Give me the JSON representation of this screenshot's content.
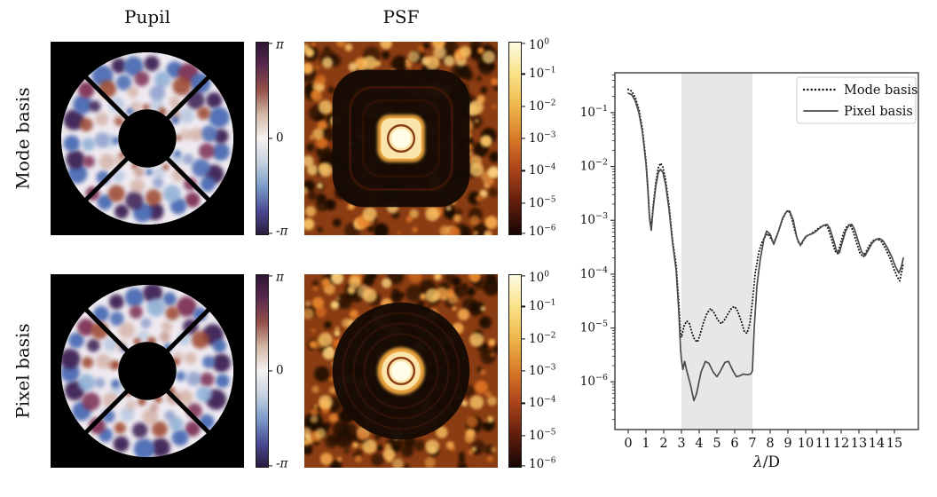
{
  "panels": {
    "column_titles": {
      "pupil": "Pupil",
      "psf": "PSF"
    },
    "rows": [
      {
        "label": "Mode basis",
        "psf_dark_hole_shape": "square"
      },
      {
        "label": "Pixel basis",
        "psf_dark_hole_shape": "circle"
      }
    ],
    "phase_colorbar": {
      "ticks": [
        "π",
        "0",
        "-π"
      ],
      "gradient_top_to_bottom": [
        "#2e1636",
        "#5c2a4e",
        "#96524a",
        "#d3b8a8",
        "#f5f2f0",
        "#c6d2e0",
        "#7b9cc9",
        "#4b4b96",
        "#2c1b3e"
      ]
    },
    "psf_colorbar": {
      "ticks": [
        {
          "base": "10",
          "exp": "0"
        },
        {
          "base": "10",
          "exp": "−1"
        },
        {
          "base": "10",
          "exp": "−2"
        },
        {
          "base": "10",
          "exp": "−3"
        },
        {
          "base": "10",
          "exp": "−4"
        },
        {
          "base": "10",
          "exp": "−5"
        },
        {
          "base": "10",
          "exp": "−6"
        }
      ],
      "gradient_top_to_bottom": [
        "#fdfae3",
        "#f9e286",
        "#eeb64b",
        "#d87a28",
        "#a8431a",
        "#611e0c",
        "#170503"
      ]
    }
  },
  "colors": {
    "background": "#ffffff",
    "axes": "#3a3a3a",
    "pupil_background": "#000000",
    "pupil_disk": "#efeaf0"
  },
  "chart_data": {
    "type": "line",
    "xlabel": "λ/D",
    "xlim": [
      -0.75,
      16.35
    ],
    "ylim": [
      1.3e-07,
      0.55
    ],
    "yscale": "log",
    "grid": false,
    "x_ticks": [
      0,
      1,
      2,
      3,
      4,
      5,
      6,
      7,
      8,
      9,
      10,
      11,
      12,
      13,
      14,
      15
    ],
    "y_tick_exponents": [
      -1,
      -2,
      -3,
      -4,
      -5,
      -6
    ],
    "legend_position": "upper right",
    "shaded_region": {
      "x_start": 3,
      "x_end": 7,
      "color": "#e7e7e7"
    },
    "series": [
      {
        "name": "Mode basis",
        "style": "dotted",
        "color": "#111111",
        "points": [
          [
            0,
            0.27
          ],
          [
            0.2,
            0.25
          ],
          [
            0.4,
            0.19
          ],
          [
            0.6,
            0.115
          ],
          [
            0.8,
            0.05
          ],
          [
            1.0,
            0.013
          ],
          [
            1.1,
            0.0045
          ],
          [
            1.2,
            0.0012
          ],
          [
            1.3,
            0.00075
          ],
          [
            1.4,
            0.0018
          ],
          [
            1.55,
            0.005
          ],
          [
            1.7,
            0.0095
          ],
          [
            1.82,
            0.0115
          ],
          [
            1.95,
            0.0098
          ],
          [
            2.1,
            0.0058
          ],
          [
            2.3,
            0.0019
          ],
          [
            2.5,
            0.00042
          ],
          [
            2.7,
            0.00015
          ],
          [
            2.85,
            3e-05
          ],
          [
            2.95,
            8e-06
          ],
          [
            3.0,
            6.7e-06
          ],
          [
            3.15,
            1.1e-05
          ],
          [
            3.3,
            1.35e-05
          ],
          [
            3.45,
            1.2e-05
          ],
          [
            3.6,
            8e-06
          ],
          [
            3.75,
            6e-06
          ],
          [
            3.9,
            5.5e-06
          ],
          [
            4.05,
            7.5e-06
          ],
          [
            4.25,
            1.3e-05
          ],
          [
            4.45,
            1.9e-05
          ],
          [
            4.65,
            2.3e-05
          ],
          [
            4.85,
            1.9e-05
          ],
          [
            5.05,
            1.4e-05
          ],
          [
            5.25,
            1.2e-05
          ],
          [
            5.45,
            1.45e-05
          ],
          [
            5.65,
            1.9e-05
          ],
          [
            5.85,
            2.4e-05
          ],
          [
            6.0,
            2.5e-05
          ],
          [
            6.15,
            2.1e-05
          ],
          [
            6.35,
            1.4e-05
          ],
          [
            6.55,
            8.5e-06
          ],
          [
            6.7,
            8e-06
          ],
          [
            6.85,
            1.2e-05
          ],
          [
            7.0,
            3e-05
          ],
          [
            7.15,
            0.0001
          ],
          [
            7.35,
            0.00025
          ],
          [
            7.55,
            0.0004
          ],
          [
            7.75,
            0.00052
          ],
          [
            7.9,
            0.00056
          ],
          [
            8.05,
            0.00045
          ],
          [
            8.2,
            0.00038
          ],
          [
            8.45,
            0.0006
          ],
          [
            8.7,
            0.00105
          ],
          [
            8.9,
            0.00145
          ],
          [
            9.05,
            0.00148
          ],
          [
            9.2,
            0.00115
          ],
          [
            9.4,
            0.00062
          ],
          [
            9.6,
            0.00038
          ],
          [
            9.75,
            0.00035
          ],
          [
            9.9,
            0.00044
          ],
          [
            10.1,
            0.00052
          ],
          [
            10.3,
            0.00056
          ],
          [
            10.5,
            0.00062
          ],
          [
            10.7,
            0.0007
          ],
          [
            10.9,
            0.00078
          ],
          [
            11.1,
            0.00082
          ],
          [
            11.25,
            0.00072
          ],
          [
            11.45,
            0.00046
          ],
          [
            11.65,
            0.00027
          ],
          [
            11.8,
            0.00024
          ],
          [
            11.95,
            0.00035
          ],
          [
            12.15,
            0.0006
          ],
          [
            12.35,
            0.0008
          ],
          [
            12.5,
            0.00083
          ],
          [
            12.65,
            0.00066
          ],
          [
            12.85,
            0.0004
          ],
          [
            13.05,
            0.00025
          ],
          [
            13.25,
            0.00021
          ],
          [
            13.45,
            0.00028
          ],
          [
            13.65,
            0.00037
          ],
          [
            13.85,
            0.00043
          ],
          [
            14.05,
            0.00045
          ],
          [
            14.25,
            0.00041
          ],
          [
            14.5,
            0.0003
          ],
          [
            14.75,
            0.0002
          ],
          [
            14.95,
            0.00013
          ],
          [
            15.15,
            9e-05
          ],
          [
            15.3,
            7.5e-05
          ],
          [
            15.45,
            0.00013
          ],
          [
            15.5,
            0.00016
          ]
        ]
      },
      {
        "name": "Pixel basis",
        "style": "solid",
        "color": "#4a4a4a",
        "points": [
          [
            0,
            0.23
          ],
          [
            0.2,
            0.215
          ],
          [
            0.4,
            0.165
          ],
          [
            0.6,
            0.1
          ],
          [
            0.8,
            0.044
          ],
          [
            1.0,
            0.0115
          ],
          [
            1.1,
            0.004
          ],
          [
            1.2,
            0.0011
          ],
          [
            1.3,
            0.00065
          ],
          [
            1.4,
            0.0016
          ],
          [
            1.55,
            0.0042
          ],
          [
            1.7,
            0.0078
          ],
          [
            1.82,
            0.0088
          ],
          [
            1.95,
            0.0078
          ],
          [
            2.1,
            0.0048
          ],
          [
            2.3,
            0.0016
          ],
          [
            2.5,
            0.00038
          ],
          [
            2.7,
            0.00012
          ],
          [
            2.85,
            2e-05
          ],
          [
            2.95,
            4e-06
          ],
          [
            3.0,
            2.6e-06
          ],
          [
            3.08,
            1.7e-06
          ],
          [
            3.18,
            2.4e-06
          ],
          [
            3.3,
            1.6e-06
          ],
          [
            3.5,
            9e-07
          ],
          [
            3.7,
            4.5e-07
          ],
          [
            3.85,
            6e-07
          ],
          [
            4.1,
            1.5e-06
          ],
          [
            4.35,
            2.4e-06
          ],
          [
            4.55,
            2.2e-06
          ],
          [
            4.8,
            1.5e-06
          ],
          [
            5.0,
            1.25e-06
          ],
          [
            5.2,
            1.6e-06
          ],
          [
            5.45,
            2.3e-06
          ],
          [
            5.65,
            2.4e-06
          ],
          [
            5.9,
            1.6e-06
          ],
          [
            6.1,
            1.25e-06
          ],
          [
            6.3,
            1.3e-06
          ],
          [
            6.5,
            1.4e-06
          ],
          [
            6.7,
            1.35e-06
          ],
          [
            6.9,
            1.4e-06
          ],
          [
            7.0,
            1.6e-06
          ],
          [
            7.1,
            1e-05
          ],
          [
            7.25,
            6e-05
          ],
          [
            7.45,
            0.0002
          ],
          [
            7.65,
            0.00045
          ],
          [
            7.8,
            0.00063
          ],
          [
            8.0,
            0.00055
          ],
          [
            8.2,
            0.00036
          ],
          [
            8.45,
            0.0006
          ],
          [
            8.7,
            0.0011
          ],
          [
            8.95,
            0.0015
          ],
          [
            9.1,
            0.00148
          ],
          [
            9.3,
            0.001
          ],
          [
            9.5,
            0.00048
          ],
          [
            9.7,
            0.00034
          ],
          [
            9.85,
            0.00042
          ],
          [
            10.0,
            0.0005
          ],
          [
            10.2,
            0.00054
          ],
          [
            10.4,
            0.00057
          ],
          [
            10.6,
            0.00063
          ],
          [
            10.8,
            0.00072
          ],
          [
            11.0,
            0.0008
          ],
          [
            11.2,
            0.00084
          ],
          [
            11.35,
            0.00072
          ],
          [
            11.55,
            0.00045
          ],
          [
            11.75,
            0.00026
          ],
          [
            11.9,
            0.00025
          ],
          [
            12.05,
            0.00038
          ],
          [
            12.25,
            0.00063
          ],
          [
            12.45,
            0.00082
          ],
          [
            12.6,
            0.00084
          ],
          [
            12.75,
            0.00068
          ],
          [
            12.95,
            0.00042
          ],
          [
            13.15,
            0.00026
          ],
          [
            13.35,
            0.00022
          ],
          [
            13.55,
            0.00029
          ],
          [
            13.75,
            0.00038
          ],
          [
            13.95,
            0.00044
          ],
          [
            14.15,
            0.00046
          ],
          [
            14.35,
            0.00042
          ],
          [
            14.6,
            0.00031
          ],
          [
            14.85,
            0.00021
          ],
          [
            15.05,
            0.00014
          ],
          [
            15.25,
            0.000105
          ],
          [
            15.4,
            0.00014
          ],
          [
            15.5,
            0.0002
          ]
        ]
      }
    ]
  }
}
